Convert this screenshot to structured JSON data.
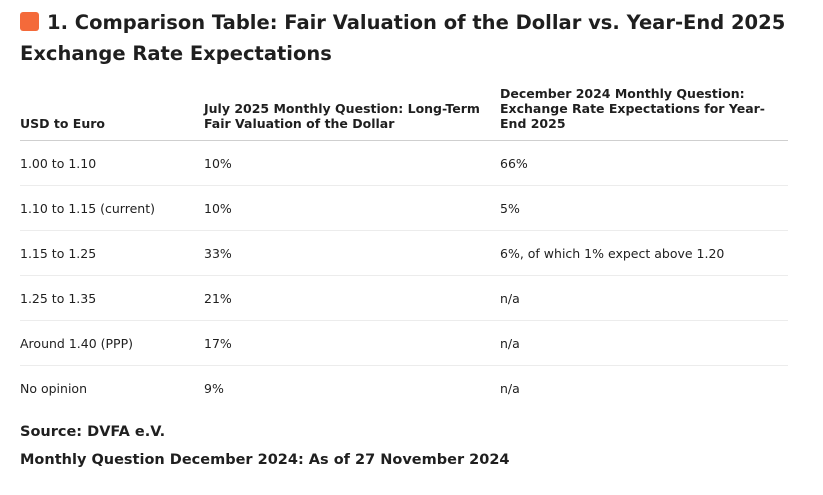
{
  "heading": {
    "icon": "orange-square-icon",
    "icon_color": "#f46a3a",
    "text": "1. Comparison Table: Fair Valuation of the Dollar vs. Year-End 2025 Exchange Rate Expectations"
  },
  "table": {
    "headers": [
      "USD to Euro",
      "July 2025 Monthly Question: Long-Term Fair Valuation of the Dollar",
      "December 2024 Monthly Question: Exchange Rate Expectations for Year-End 2025"
    ],
    "rows": [
      [
        "1.00 to 1.10",
        "10%",
        "66%"
      ],
      [
        "1.10 to 1.15 (current)",
        "10%",
        "5%"
      ],
      [
        "1.15 to 1.25",
        "33%",
        "6%, of which 1% expect above 1.20"
      ],
      [
        "1.25 to 1.35",
        "21%",
        "n/a"
      ],
      [
        "Around 1.40 (PPP)",
        "17%",
        "n/a"
      ],
      [
        "No opinion",
        "9%",
        "n/a"
      ]
    ]
  },
  "footnotes": {
    "source": "Source: DVFA e.V.",
    "asof": "Monthly Question December 2024: As of 27 November 2024"
  }
}
